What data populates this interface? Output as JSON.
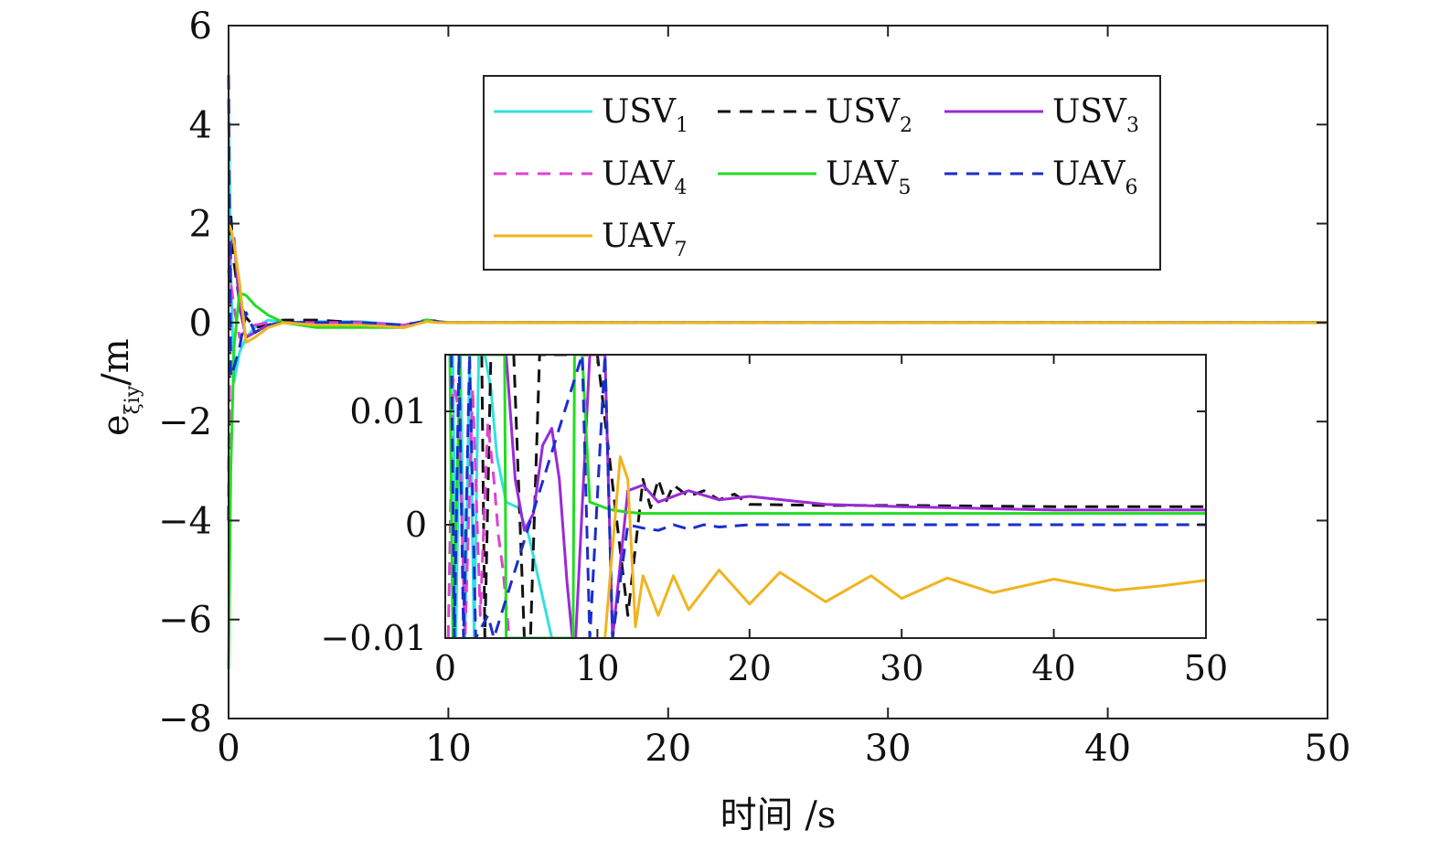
{
  "chart_data": [
    {
      "type": "line",
      "xlabel": "时间 /s",
      "ylabel": "e",
      "ylabel_sub": "ξiy",
      "ylabel_unit": "/m",
      "xlim": [
        0,
        50
      ],
      "ylim": [
        -8,
        6
      ],
      "xticks": [
        0,
        10,
        20,
        30,
        40,
        50
      ],
      "yticks": [
        6,
        4,
        2,
        0,
        -2,
        -4,
        -6,
        -8
      ],
      "xtick_labels": [
        "0",
        "10",
        "20",
        "30",
        "40",
        "50"
      ],
      "ytick_labels": [
        "6",
        "4",
        "2",
        "0",
        "−2",
        "−4",
        "−6",
        "−8"
      ],
      "grid": false,
      "legend_position": "top-right",
      "series": [
        {
          "name": "USV",
          "sub": "1",
          "color": "#33e0e0",
          "dash": "solid",
          "x": [
            0,
            0.1,
            0.25,
            0.5,
            0.8,
            1.2,
            1.8,
            2.5,
            4,
            6,
            8,
            9,
            9.5,
            10,
            15,
            20,
            30,
            40,
            50
          ],
          "y": [
            4.5,
            1.0,
            -1.2,
            -0.6,
            -0.3,
            -0.1,
            0.05,
            0.0,
            0.02,
            0.02,
            -0.05,
            0.03,
            0.02,
            0.0,
            0.0,
            0.0,
            0.0,
            0.0,
            0.0
          ]
        },
        {
          "name": "USV",
          "sub": "2",
          "color": "#111111",
          "dash": "dashed",
          "x": [
            0,
            0.1,
            0.25,
            0.5,
            0.8,
            1.2,
            1.8,
            2.5,
            4,
            6,
            8,
            9,
            9.5,
            10,
            15,
            20,
            30,
            40,
            50
          ],
          "y": [
            -4.0,
            2.2,
            1.2,
            0.4,
            0.1,
            -0.1,
            -0.05,
            0.05,
            0.05,
            0.0,
            -0.05,
            0.05,
            0.03,
            0.0,
            0.0,
            0.0,
            0.0,
            0.0,
            0.0
          ]
        },
        {
          "name": "USV",
          "sub": "3",
          "color": "#9a2ad6",
          "dash": "solid",
          "x": [
            0,
            0.1,
            0.25,
            0.5,
            0.8,
            1.2,
            1.8,
            2.5,
            4,
            6,
            8,
            9,
            9.5,
            10,
            15,
            20,
            30,
            40,
            50
          ],
          "y": [
            1.0,
            1.6,
            1.7,
            0.3,
            -0.3,
            -0.2,
            -0.05,
            0.0,
            0.0,
            0.0,
            -0.05,
            0.04,
            0.02,
            0.0,
            0.0,
            0.0,
            0.0,
            0.0,
            0.0
          ]
        },
        {
          "name": "UAV",
          "sub": "4",
          "color": "#e040d8",
          "dash": "dashed",
          "x": [
            0,
            0.1,
            0.25,
            0.5,
            0.8,
            1.2,
            1.8,
            2.5,
            4,
            6,
            8,
            9,
            9.5,
            10,
            15,
            20,
            30,
            40,
            50
          ],
          "y": [
            -3.0,
            0.8,
            0.3,
            -0.3,
            -0.15,
            -0.05,
            0.0,
            0.0,
            0.0,
            0.0,
            -0.05,
            0.03,
            0.02,
            0.0,
            0.0,
            0.0,
            0.0,
            0.0,
            0.0
          ]
        },
        {
          "name": "UAV",
          "sub": "5",
          "color": "#22dd22",
          "dash": "solid",
          "x": [
            0,
            0.1,
            0.25,
            0.5,
            0.8,
            1.2,
            1.8,
            2.5,
            4,
            6,
            8,
            9,
            9.5,
            10,
            15,
            20,
            30,
            40,
            50
          ],
          "y": [
            -7.0,
            -3.0,
            -0.5,
            0.6,
            0.55,
            0.35,
            0.15,
            0.0,
            -0.1,
            -0.1,
            -0.1,
            0.05,
            0.02,
            0.0,
            0.0,
            0.0,
            0.0,
            0.0,
            0.0
          ]
        },
        {
          "name": "UAV",
          "sub": "6",
          "color": "#1a2ecc",
          "dash": "dashed",
          "x": [
            0,
            0.1,
            0.25,
            0.5,
            0.8,
            1.2,
            1.8,
            2.5,
            4,
            6,
            8,
            9,
            9.5,
            10,
            15,
            20,
            30,
            40,
            50
          ],
          "y": [
            5.0,
            -1.1,
            -0.9,
            -0.5,
            0.2,
            -0.2,
            -0.05,
            0.0,
            0.0,
            0.0,
            -0.05,
            0.03,
            0.02,
            0.0,
            0.0,
            0.0,
            0.0,
            0.0,
            0.0
          ]
        },
        {
          "name": "UAV",
          "sub": "7",
          "color": "#f0b41e",
          "dash": "solid",
          "x": [
            0,
            0.1,
            0.25,
            0.5,
            0.8,
            1.2,
            1.8,
            2.5,
            4,
            6,
            8,
            9,
            9.5,
            10,
            15,
            20,
            30,
            40,
            50
          ],
          "y": [
            2.0,
            1.9,
            1.6,
            0.8,
            -0.4,
            -0.3,
            -0.1,
            0.0,
            -0.05,
            -0.05,
            -0.1,
            0.02,
            0.0,
            0.0,
            0.0,
            0.0,
            0.0,
            0.0,
            0.0
          ]
        }
      ]
    },
    {
      "type": "line",
      "role": "inset",
      "xlim": [
        0,
        50
      ],
      "ylim": [
        -0.01,
        0.015
      ],
      "xticks": [
        0,
        10,
        20,
        30,
        40,
        50
      ],
      "yticks": [
        0.01,
        0,
        -0.01
      ],
      "xtick_labels": [
        "0",
        "10",
        "20",
        "30",
        "40",
        "50"
      ],
      "ytick_labels": [
        "0.01",
        "0",
        "−0.01"
      ],
      "grid": false,
      "series": [
        {
          "name": "USV",
          "sub": "1",
          "color": "#33e0e0",
          "dash": "solid",
          "x": [
            0.5,
            0.7,
            1.0,
            1.3,
            1.6,
            1.9,
            2.2,
            2.6,
            3.0,
            3.4,
            4.0,
            4.8,
            5.5,
            6.0,
            6.5,
            7.0
          ],
          "y": [
            0.015,
            -0.01,
            0.015,
            -0.01,
            0.015,
            -0.01,
            0.015,
            0.015,
            0.012,
            0.006,
            0.002,
            0.0015,
            -0.001,
            -0.004,
            -0.007,
            -0.01
          ]
        },
        {
          "name": "USV",
          "sub": "2",
          "color": "#111111",
          "dash": "dashed",
          "x": [
            2.4,
            2.6,
            3.0,
            4.5,
            5.2,
            5.6,
            6.2,
            10,
            12,
            13,
            13.5,
            14,
            14.5,
            15,
            16,
            17,
            18,
            19,
            20,
            25,
            30,
            40,
            50
          ],
          "y": [
            0.015,
            -0.01,
            0.015,
            0.015,
            -0.01,
            -0.01,
            0.015,
            0.015,
            -0.008,
            0.004,
            0.0015,
            0.004,
            0.002,
            0.0035,
            0.0025,
            0.003,
            0.0022,
            0.0027,
            0.0018,
            0.0017,
            0.0017,
            0.0016,
            0.0016
          ]
        },
        {
          "name": "USV",
          "sub": "3",
          "color": "#9a2ad6",
          "dash": "solid",
          "x": [
            4.0,
            4.6,
            5.2,
            5.8,
            6.4,
            7.0,
            7.5,
            8.0,
            8.5,
            9.5,
            10.5,
            11.0,
            12.0,
            13.0,
            14.0,
            16.0,
            18.0,
            20.0,
            25.0,
            30.0,
            40.0,
            50.0
          ],
          "y": [
            0.015,
            0.004,
            -0.0005,
            0.001,
            0.007,
            0.0085,
            0.004,
            -0.005,
            -0.012,
            0.015,
            0.015,
            -0.01,
            0.003,
            0.0035,
            0.002,
            0.003,
            0.0022,
            0.0025,
            0.0018,
            0.0016,
            0.0013,
            0.0013
          ]
        },
        {
          "name": "UAV",
          "sub": "4",
          "color": "#e040d8",
          "dash": "dashed",
          "x": [
            0.2,
            0.5,
            0.9,
            1.3,
            1.8,
            2.3,
            2.8,
            3.2,
            3.5,
            3.8,
            4.2
          ],
          "y": [
            -0.01,
            0.013,
            0.01,
            -0.01,
            0.012,
            -0.008,
            0.009,
            0.004,
            -0.001,
            -0.004,
            -0.01
          ]
        },
        {
          "name": "UAV",
          "sub": "5",
          "color": "#22dd22",
          "dash": "solid",
          "x": [
            0.3,
            0.5,
            1.0,
            3.9,
            4.0,
            8.4,
            8.5,
            9.0,
            9.5,
            10.5,
            11.0,
            11.5,
            12.0,
            13.0,
            15.0,
            20.0,
            30.0,
            40.0,
            50.0
          ],
          "y": [
            0.015,
            -0.01,
            0.015,
            0.015,
            -0.01,
            -0.01,
            0.015,
            0.015,
            0.002,
            0.0015,
            0.0013,
            0.0012,
            0.0011,
            0.001,
            0.001,
            0.001,
            0.001,
            0.001,
            0.001
          ]
        },
        {
          "name": "UAV",
          "sub": "6",
          "color": "#1a2ecc",
          "dash": "dashed",
          "x": [
            0.4,
            0.6,
            0.9,
            1.2,
            1.6,
            2.0,
            2.8,
            3.2,
            9.0,
            9.5,
            10.5,
            11.0,
            12.0,
            13.0,
            14.0,
            15.0,
            16.0,
            17.0,
            18.0,
            20.0,
            25.0,
            30.0,
            40.0,
            50.0
          ],
          "y": [
            0.015,
            -0.01,
            0.015,
            -0.01,
            0.015,
            -0.01,
            -0.008,
            -0.01,
            0.015,
            -0.01,
            0.015,
            -0.01,
            0.0,
            -0.0003,
            -0.0005,
            0.0,
            -0.0004,
            0.0,
            -0.0002,
            0.0,
            0.0,
            0.0,
            0.0,
            0.0
          ]
        },
        {
          "name": "UAV",
          "sub": "7",
          "color": "#f0b41e",
          "dash": "solid",
          "x": [
            10.5,
            11.0,
            11.5,
            12.0,
            12.5,
            13.0,
            14.0,
            15.0,
            16.0,
            18.0,
            20.0,
            22.0,
            25.0,
            28.0,
            30.0,
            33.0,
            36.0,
            40.0,
            44.0,
            47.0,
            50.0
          ],
          "y": [
            -0.01,
            -0.002,
            0.006,
            0.004,
            -0.009,
            -0.0045,
            -0.008,
            -0.0045,
            -0.0075,
            -0.004,
            -0.007,
            -0.0042,
            -0.0068,
            -0.0045,
            -0.0065,
            -0.0047,
            -0.006,
            -0.0048,
            -0.0058,
            -0.0054,
            -0.0049
          ]
        }
      ]
    }
  ]
}
